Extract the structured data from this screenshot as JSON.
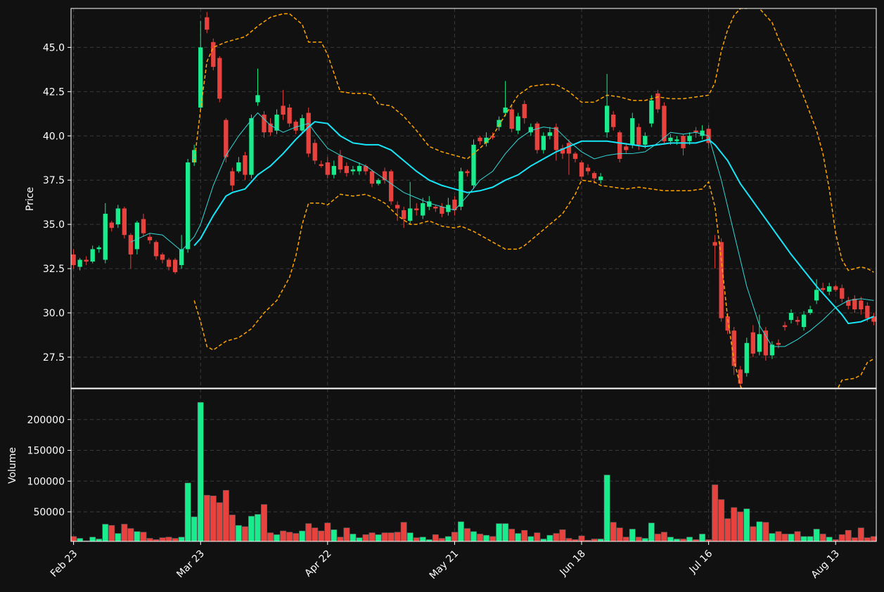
{
  "chart_data": {
    "type": "candlestick",
    "ylabel": "Price",
    "volume_ylabel": "Volume",
    "up_color": "#19ec8c",
    "down_color": "#e8423f",
    "grid": true,
    "categories": [
      "Feb 23",
      null,
      null,
      null,
      null,
      null,
      null,
      null,
      null,
      null,
      null,
      null,
      null,
      null,
      null,
      null,
      null,
      null,
      null,
      null,
      "Mar 23",
      null,
      null,
      null,
      null,
      null,
      null,
      null,
      null,
      null,
      null,
      null,
      null,
      null,
      null,
      null,
      null,
      null,
      null,
      null,
      "Apr 22",
      null,
      null,
      null,
      null,
      null,
      null,
      null,
      null,
      null,
      null,
      null,
      null,
      null,
      null,
      null,
      null,
      null,
      null,
      null,
      "May 21",
      null,
      null,
      null,
      null,
      null,
      null,
      null,
      null,
      null,
      null,
      null,
      null,
      null,
      null,
      null,
      null,
      null,
      null,
      null,
      "Jun 18",
      null,
      null,
      null,
      null,
      null,
      null,
      null,
      null,
      null,
      null,
      null,
      null,
      null,
      null,
      null,
      null,
      null,
      null,
      null,
      "Jul 16",
      null,
      null,
      null,
      null,
      null,
      null,
      null,
      null,
      null,
      null,
      null,
      null,
      null,
      null,
      null,
      null,
      null,
      null,
      null,
      "Aug 13",
      null,
      null,
      null,
      null,
      null,
      null
    ],
    "xlim": [
      -0.4,
      126.4
    ],
    "ylim": [
      25.75,
      47.2
    ],
    "yticks": [
      27.5,
      {
        "value": 30,
        "label": "30.0"
      },
      32.5,
      {
        "value": 35,
        "label": "35.0"
      },
      37.5,
      {
        "value": 40,
        "label": "40.0"
      },
      42.5,
      {
        "value": 45,
        "label": "45.0"
      }
    ],
    "volume_ylim": [
      2000,
      250000
    ],
    "volume_yticks": [
      50000,
      100000,
      150000,
      200000
    ],
    "open": [
      33.3,
      32.6,
      33.0,
      32.9,
      33.6,
      33.0,
      35.1,
      35.0,
      35.9,
      34.4,
      33.6,
      35.3,
      34.3,
      34.0,
      33.3,
      33.0,
      33.0,
      32.7,
      33.6,
      38.5,
      41.6,
      46.7,
      45.3,
      44.4,
      40.9,
      38.0,
      38.0,
      38.9,
      37.8,
      41.9,
      41.2,
      40.7,
      40.3,
      41.7,
      41.6,
      40.8,
      40.3,
      41.3,
      39.6,
      38.4,
      38.5,
      37.8,
      38.9,
      38.3,
      38.0,
      38.0,
      38.3,
      38.0,
      37.3,
      38.0,
      38.0,
      36.1,
      35.8,
      35.2,
      35.9,
      35.5,
      36.0,
      36.0,
      36.0,
      35.7,
      36.4,
      36.0,
      38.0,
      37.2,
      39.9,
      39.6,
      40.0,
      40.5,
      41.3,
      41.5,
      40.3,
      41.8,
      40.2,
      40.7,
      39.2,
      40.0,
      40.5,
      39.3,
      39.6,
      39.0,
      38.5,
      38.2,
      37.9,
      37.5,
      40.2,
      41.2,
      40.2,
      39.4,
      39.5,
      40.5,
      39.5,
      40.7,
      42.4,
      41.7,
      39.7,
      39.7,
      40.0,
      39.7,
      40.3,
      40.0,
      40.4,
      34.0,
      34.0,
      29.8,
      29.0,
      26.8,
      26.6,
      28.9,
      27.8,
      29.0,
      27.6,
      28.3,
      29.3,
      29.6,
      29.6,
      29.2,
      30.0,
      30.7,
      31.4,
      31.2,
      31.5,
      31.4,
      30.7,
      30.8,
      30.7,
      30.4,
      29.8
    ],
    "high": [
      33.6,
      33.1,
      33.2,
      33.8,
      33.8,
      36.2,
      35.2,
      36.1,
      36.0,
      34.5,
      35.2,
      35.6,
      34.5,
      34.1,
      33.4,
      33.1,
      33.1,
      34.4,
      38.7,
      39.5,
      46.5,
      47.0,
      45.5,
      44.5,
      41.0,
      38.2,
      38.8,
      39.1,
      41.2,
      43.8,
      41.4,
      41.0,
      41.5,
      42.6,
      41.8,
      40.9,
      41.2,
      41.6,
      39.8,
      38.6,
      38.8,
      38.6,
      39.2,
      38.5,
      38.3,
      38.5,
      38.4,
      38.1,
      37.6,
      38.2,
      38.1,
      36.3,
      36.0,
      37.4,
      36.2,
      36.5,
      36.6,
      36.1,
      36.2,
      36.5,
      36.6,
      38.2,
      38.1,
      39.8,
      40.0,
      40.2,
      40.2,
      41.1,
      43.1,
      41.8,
      41.3,
      42.0,
      40.7,
      40.8,
      40.2,
      40.5,
      40.7,
      39.5,
      39.8,
      39.1,
      38.6,
      38.4,
      38.0,
      37.9,
      43.5,
      41.4,
      40.3,
      39.6,
      41.3,
      40.7,
      40.2,
      42.3,
      42.6,
      41.9,
      40.1,
      40.0,
      40.1,
      40.2,
      40.5,
      40.6,
      40.6,
      34.4,
      34.2,
      30.0,
      29.2,
      27.0,
      28.6,
      29.3,
      29.9,
      29.2,
      28.4,
      28.5,
      29.5,
      30.2,
      29.8,
      30.1,
      30.4,
      31.9,
      31.7,
      31.7,
      31.6,
      31.6,
      30.9,
      31.0,
      30.9,
      30.6,
      30.0
    ],
    "low": [
      32.5,
      32.4,
      32.7,
      32.8,
      33.4,
      32.8,
      34.6,
      34.8,
      34.2,
      32.5,
      33.3,
      34.3,
      33.9,
      33.0,
      32.8,
      32.4,
      32.2,
      32.5,
      33.4,
      38.3,
      41.5,
      45.8,
      43.7,
      41.9,
      38.5,
      36.9,
      37.9,
      37.5,
      37.6,
      41.7,
      39.9,
      40.0,
      40.1,
      40.9,
      40.5,
      40.1,
      40.1,
      38.8,
      38.4,
      38.2,
      37.6,
      37.6,
      37.9,
      37.7,
      37.8,
      37.8,
      37.8,
      37.1,
      37.2,
      37.3,
      36.1,
      35.2,
      34.8,
      35.0,
      35.5,
      35.3,
      35.8,
      35.7,
      35.4,
      35.5,
      35.5,
      35.8,
      37.7,
      37.0,
      39.5,
      39.4,
      39.8,
      40.3,
      41.1,
      40.2,
      40.1,
      40.7,
      40.0,
      39.0,
      39.0,
      39.8,
      38.6,
      38.7,
      37.8,
      38.5,
      37.5,
      37.8,
      37.3,
      37.3,
      39.9,
      40.3,
      38.5,
      39.0,
      39.3,
      39.2,
      39.3,
      40.5,
      41.3,
      39.5,
      39.5,
      39.5,
      38.9,
      39.5,
      39.9,
      39.8,
      39.3,
      32.5,
      29.5,
      28.8,
      26.5,
      25.8,
      26.4,
      27.5,
      27.6,
      27.3,
      27.4,
      28.0,
      29.0,
      29.4,
      29.3,
      29.0,
      29.9,
      30.5,
      31.1,
      31.0,
      31.2,
      30.6,
      30.2,
      30.0,
      29.9,
      29.5,
      29.3
    ],
    "close": [
      32.7,
      33.0,
      32.9,
      33.6,
      33.7,
      35.6,
      34.8,
      35.9,
      34.4,
      33.3,
      35.1,
      34.5,
      34.1,
      33.2,
      33.0,
      32.6,
      32.3,
      33.6,
      38.5,
      39.2,
      45.0,
      46.0,
      43.9,
      42.1,
      38.8,
      37.2,
      38.5,
      37.8,
      41.0,
      42.3,
      40.2,
      40.2,
      41.2,
      41.2,
      40.7,
      40.3,
      41.0,
      39.0,
      38.6,
      38.3,
      37.8,
      38.3,
      38.1,
      37.9,
      38.1,
      38.3,
      38.0,
      37.3,
      37.5,
      37.5,
      36.3,
      35.9,
      35.3,
      35.9,
      35.8,
      36.2,
      36.3,
      35.9,
      35.6,
      36.1,
      35.8,
      38.0,
      37.9,
      39.5,
      39.7,
      39.9,
      39.9,
      40.9,
      41.6,
      40.4,
      41.1,
      41.0,
      40.5,
      39.2,
      40.0,
      40.2,
      39.2,
      39.0,
      39.0,
      38.7,
      37.7,
      38.0,
      37.6,
      37.7,
      41.7,
      40.5,
      38.7,
      39.2,
      41.0,
      39.5,
      40.0,
      42.0,
      41.5,
      39.7,
      39.9,
      39.8,
      39.3,
      40.0,
      40.2,
      40.3,
      39.6,
      33.8,
      29.7,
      29.0,
      27.0,
      26.0,
      28.3,
      27.7,
      28.8,
      27.6,
      28.2,
      28.2,
      29.2,
      30.0,
      29.5,
      29.9,
      30.2,
      31.3,
      31.3,
      31.5,
      31.3,
      30.8,
      30.4,
      30.2,
      30.2,
      29.7,
      29.5
    ],
    "volume": [
      10000,
      7000,
      3000,
      9000,
      6000,
      30000,
      28000,
      15000,
      30000,
      23000,
      18000,
      17000,
      7000,
      5000,
      8000,
      9000,
      7000,
      9000,
      97000,
      42000,
      228000,
      77000,
      76000,
      65000,
      85000,
      45000,
      28000,
      26000,
      43000,
      46000,
      62000,
      16000,
      13000,
      19000,
      17000,
      15000,
      19000,
      31000,
      24000,
      19000,
      32000,
      21000,
      9000,
      24000,
      14000,
      8000,
      13000,
      16000,
      13000,
      16000,
      16000,
      17000,
      33000,
      16000,
      8000,
      9000,
      5000,
      13000,
      7000,
      10000,
      17000,
      34000,
      23000,
      18000,
      14000,
      12000,
      10000,
      31000,
      31000,
      22000,
      15000,
      20000,
      10000,
      16000,
      6000,
      12000,
      15000,
      21000,
      7000,
      5000,
      11000,
      4000,
      6000,
      6000,
      110000,
      33000,
      24000,
      9000,
      22000,
      9000,
      7000,
      32000,
      14000,
      17000,
      9000,
      6000,
      6000,
      9000,
      5000,
      14000,
      5000,
      94000,
      70000,
      39000,
      57000,
      50000,
      55000,
      26000,
      34000,
      33000,
      15000,
      18000,
      14000,
      14000,
      18000,
      10000,
      10000,
      22000,
      14000,
      9000,
      5000,
      13000,
      20000,
      8000,
      24000,
      8000,
      10000
    ],
    "lines": [
      {
        "color": "#33d9d9",
        "width": 1,
        "dashed": false,
        "x": [
          9,
          12,
          14,
          17,
          19,
          20,
          22,
          24,
          26,
          28,
          29,
          31,
          33,
          35,
          37,
          38,
          40,
          42,
          44,
          46,
          48,
          50,
          52,
          54,
          56,
          58,
          60,
          62,
          64,
          66,
          68,
          70,
          72,
          74,
          76,
          78,
          80,
          82,
          84,
          86,
          88,
          90,
          92,
          94,
          96,
          98,
          100,
          102,
          104,
          106,
          108,
          110,
          112,
          114,
          116,
          118,
          120,
          122,
          124,
          126
        ],
        "values": [
          34.0,
          34.5,
          34.4,
          33.5,
          34.3,
          35.0,
          37.2,
          38.9,
          40.0,
          40.9,
          41.3,
          40.6,
          40.2,
          40.5,
          40.7,
          40.2,
          39.3,
          38.9,
          38.6,
          38.3,
          37.8,
          37.3,
          36.8,
          36.5,
          36.2,
          36.0,
          35.8,
          36.6,
          37.5,
          38.0,
          39.0,
          39.8,
          40.3,
          40.5,
          40.4,
          39.7,
          39.1,
          38.7,
          38.9,
          39.0,
          39.0,
          39.1,
          39.6,
          40.2,
          40.1,
          40.2,
          40.0,
          37.5,
          34.5,
          31.5,
          29.3,
          28.1,
          28.1,
          28.5,
          29.0,
          29.6,
          30.3,
          30.7,
          30.8,
          30.7
        ]
      },
      {
        "color": "#16e6f8",
        "width": 2,
        "dashed": false,
        "x": [
          19,
          20,
          22,
          24,
          25,
          27,
          29,
          31,
          33,
          35,
          37,
          38,
          40,
          42,
          44,
          46,
          48,
          50,
          52,
          54,
          56,
          58,
          60,
          62,
          64,
          66,
          68,
          70,
          72,
          74,
          76,
          78,
          80,
          82,
          84,
          86,
          88,
          90,
          92,
          94,
          96,
          98,
          100,
          101,
          103,
          105,
          107,
          109,
          111,
          113,
          115,
          117,
          119,
          121,
          122,
          124,
          126
        ],
        "values": [
          33.8,
          34.2,
          35.5,
          36.6,
          36.8,
          37.0,
          37.8,
          38.3,
          39.0,
          39.8,
          40.5,
          40.8,
          40.7,
          40.0,
          39.6,
          39.5,
          39.5,
          39.2,
          38.6,
          38.0,
          37.5,
          37.2,
          37.0,
          36.8,
          36.9,
          37.1,
          37.5,
          37.8,
          38.3,
          38.7,
          39.1,
          39.4,
          39.7,
          39.7,
          39.7,
          39.6,
          39.5,
          39.4,
          39.5,
          39.6,
          39.6,
          39.6,
          39.8,
          39.5,
          38.6,
          37.3,
          36.3,
          35.3,
          34.3,
          33.3,
          32.4,
          31.5,
          30.7,
          29.9,
          29.4,
          29.5,
          29.8
        ]
      },
      {
        "color": "#ffa500",
        "width": 1.5,
        "dashed": true,
        "x": [
          19,
          20,
          21,
          22,
          24,
          27,
          29,
          31,
          33,
          34,
          36,
          37,
          39,
          40,
          42,
          44,
          46,
          47,
          48,
          50,
          52,
          54,
          56,
          58,
          60,
          62,
          64,
          66,
          68,
          70,
          72,
          74,
          76,
          78,
          80,
          82,
          84,
          86,
          88,
          90,
          92,
          94,
          96,
          98,
          100,
          101,
          102,
          103,
          104,
          105,
          106,
          107,
          108,
          110,
          111,
          113,
          115,
          117,
          118,
          119,
          120,
          121,
          122,
          124,
          125,
          126
        ],
        "values": [
          38.5,
          41.5,
          44.2,
          45.0,
          45.3,
          45.6,
          46.2,
          46.7,
          46.9,
          46.9,
          46.3,
          45.3,
          45.3,
          44.6,
          42.5,
          42.4,
          42.4,
          42.3,
          41.8,
          41.7,
          41.1,
          40.3,
          39.4,
          39.1,
          38.9,
          38.7,
          39.3,
          40.0,
          41.2,
          42.3,
          42.8,
          42.9,
          42.9,
          42.5,
          41.9,
          41.9,
          42.3,
          42.2,
          42.0,
          42.0,
          42.2,
          42.1,
          42.1,
          42.2,
          42.3,
          43.0,
          44.8,
          46.0,
          46.8,
          47.2,
          47.2,
          47.3,
          47.2,
          46.4,
          45.5,
          44.0,
          42.2,
          40.3,
          39.0,
          37.0,
          34.5,
          33.0,
          32.4,
          32.6,
          32.5,
          32.3
        ]
      },
      {
        "color": "#ffa500",
        "width": 1.5,
        "dashed": true,
        "x": [
          19,
          20,
          21,
          22,
          24,
          26,
          28,
          30,
          32,
          34,
          35,
          36,
          37,
          39,
          40,
          42,
          44,
          46,
          48,
          49,
          51,
          53,
          54,
          56,
          58,
          60,
          61,
          63,
          65,
          67,
          68,
          70,
          71,
          73,
          75,
          77,
          79,
          80,
          82,
          83,
          85,
          87,
          89,
          91,
          93,
          95,
          97,
          99,
          100,
          101,
          102,
          103,
          104,
          105,
          106,
          107,
          120,
          121,
          123,
          124,
          125,
          126
        ],
        "values": [
          30.7,
          29.5,
          28.1,
          27.9,
          28.4,
          28.6,
          29.1,
          30.0,
          30.7,
          32.0,
          33.2,
          35.0,
          36.2,
          36.2,
          36.1,
          36.7,
          36.6,
          36.7,
          36.4,
          36.2,
          35.5,
          35.0,
          35.0,
          35.2,
          34.9,
          34.8,
          34.9,
          34.6,
          34.2,
          33.8,
          33.6,
          33.6,
          33.8,
          34.4,
          35.0,
          35.6,
          36.7,
          37.5,
          37.4,
          37.2,
          37.1,
          37.0,
          37.1,
          37.0,
          36.9,
          36.9,
          36.9,
          37.0,
          37.4,
          36.0,
          33.0,
          29.7,
          27.3,
          25.9,
          25.0,
          null,
          25.5,
          26.2,
          26.3,
          26.5,
          27.2,
          27.4
        ]
      }
    ]
  }
}
